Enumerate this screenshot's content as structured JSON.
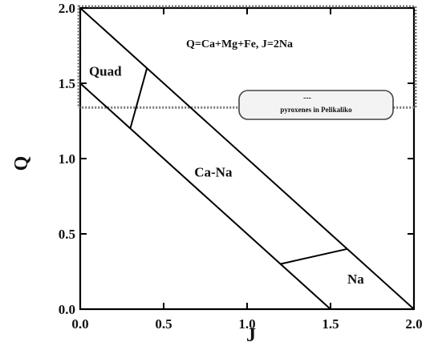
{
  "chart_data": {
    "type": "diagram",
    "xlabel": "J",
    "ylabel": "Q",
    "xlim": [
      0.0,
      2.0
    ],
    "ylim": [
      0.0,
      2.0
    ],
    "xticks": [
      "0.0",
      "0.5",
      "1.0",
      "1.5",
      "2.0"
    ],
    "yticks": [
      "0.0",
      "0.5",
      "1.0",
      "1.5",
      "2.0"
    ],
    "formula": "Q=Ca+Mg+Fe, J=2Na",
    "legend": {
      "line1": "---",
      "line2": "pyroxenes in Pelikaliko"
    },
    "lines": [
      {
        "name": "lower-boundary",
        "points": [
          [
            0.0,
            1.5
          ],
          [
            1.5,
            0.0
          ]
        ]
      },
      {
        "name": "upper-boundary",
        "points": [
          [
            0.0,
            2.0
          ],
          [
            2.0,
            0.0
          ]
        ]
      },
      {
        "name": "quad-canx-boundary",
        "points": [
          [
            0.3,
            1.2
          ],
          [
            0.4,
            1.6
          ]
        ]
      },
      {
        "name": "canx-na-boundary",
        "points": [
          [
            1.2,
            0.3
          ],
          [
            1.6,
            0.4
          ]
        ]
      }
    ],
    "regions": [
      {
        "label": "Quad",
        "x": 0.12,
        "y": 1.55
      },
      {
        "label": "Ca-Na",
        "x": 0.78,
        "y": 0.88
      },
      {
        "label": "Na",
        "x": 1.62,
        "y": 0.17
      }
    ]
  }
}
